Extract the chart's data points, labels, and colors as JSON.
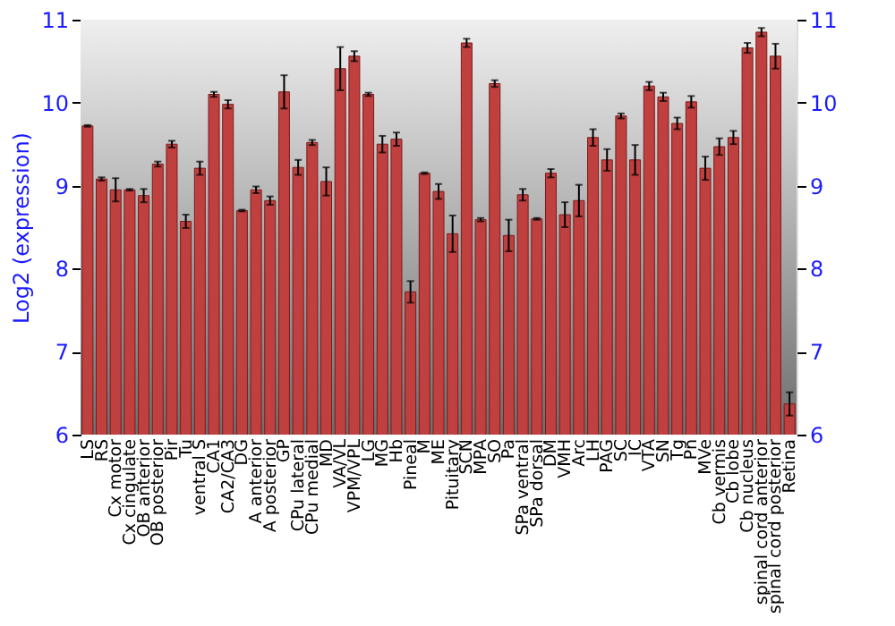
{
  "chart_data": {
    "type": "bar",
    "ylabel": "Log2 (expression)",
    "categories": [
      "LS",
      "RS",
      "Cx motor",
      "Cx cingulate",
      "OB anterior",
      "OB posterior",
      "Pir",
      "Tu",
      "ventral S",
      "CA1",
      "CA2/CA3",
      "DG",
      "A anterior",
      "A posterior",
      "GP",
      "CPu lateral",
      "CPu medial",
      "MD",
      "VA/VL",
      "VPM/VPL",
      "LG",
      "MG",
      "Hb",
      "Pineal",
      "M",
      "ME",
      "Pituitary",
      "SCN",
      "MPA",
      "SO",
      "Pa",
      "SPa ventral",
      "SPa dorsal",
      "DM",
      "VMH",
      "Arc",
      "LH",
      "PAG",
      "SC",
      "IC",
      "VTA",
      "SN",
      "Tg",
      "Pn",
      "MVe",
      "Cb vermis",
      "Cb lobe",
      "Cb nucleus",
      "spinal cord anterior",
      "spinal cord posterior",
      "Retina"
    ],
    "series": [
      {
        "color": "#c0403f",
        "values": [
          9.72,
          9.08,
          8.95,
          8.95,
          8.88,
          9.26,
          9.5,
          8.57,
          9.21,
          10.1,
          9.98,
          8.7,
          8.95,
          8.82,
          10.13,
          9.22,
          9.52,
          9.05,
          10.41,
          10.56,
          10.1,
          9.5,
          9.56,
          7.72,
          9.15,
          8.93,
          8.42,
          10.72,
          8.59,
          10.23,
          8.4,
          8.89,
          8.6,
          9.15,
          8.65,
          8.82,
          9.58,
          9.31,
          9.84,
          9.31,
          10.2,
          10.07,
          9.75,
          10.01,
          9.21,
          9.47,
          9.58,
          10.66,
          10.85,
          10.56,
          6.37
        ],
        "errors": [
          0.01,
          0.02,
          0.14,
          0.01,
          0.08,
          0.03,
          0.04,
          0.08,
          0.08,
          0.03,
          0.05,
          0.01,
          0.04,
          0.05,
          0.2,
          0.09,
          0.03,
          0.17,
          0.26,
          0.06,
          0.02,
          0.1,
          0.08,
          0.13,
          0.01,
          0.09,
          0.22,
          0.05,
          0.02,
          0.04,
          0.19,
          0.07,
          0.01,
          0.05,
          0.15,
          0.19,
          0.1,
          0.13,
          0.03,
          0.18,
          0.05,
          0.05,
          0.07,
          0.07,
          0.14,
          0.1,
          0.08,
          0.06,
          0.05,
          0.15,
          0.14
        ]
      }
    ],
    "ylim": [
      6,
      11
    ],
    "yticks": [
      6,
      7,
      8,
      9,
      10,
      11
    ],
    "y2lim": [
      6,
      11
    ],
    "y2ticks": [
      6,
      7,
      8,
      9,
      10,
      11
    ],
    "grid": "y"
  }
}
